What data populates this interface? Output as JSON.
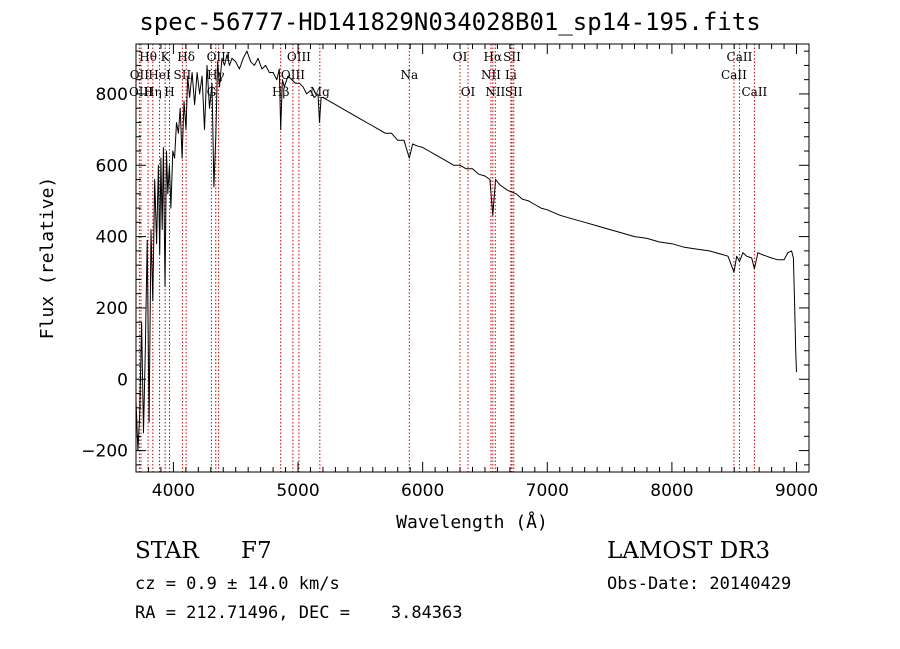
{
  "chart_data": {
    "type": "line",
    "title": "spec-56777-HD141829N034028B01_sp14-195.fits",
    "xlabel": "Wavelength (Å)",
    "ylabel": "Flux (relative)",
    "xlim": [
      3700,
      9100
    ],
    "ylim": [
      -260,
      940
    ],
    "xticks": [
      4000,
      5000,
      6000,
      7000,
      8000,
      9000
    ],
    "yticks": [
      -200,
      0,
      200,
      400,
      600,
      800
    ],
    "xtick_labels": [
      "4000",
      "5000",
      "6000",
      "7000",
      "8000",
      "9000"
    ],
    "ytick_labels": [
      "−200",
      "0",
      "200",
      "400",
      "600",
      "800"
    ],
    "series": [
      {
        "name": "spectrum",
        "x": [
          3700,
          3715,
          3730,
          3745,
          3760,
          3775,
          3790,
          3805,
          3820,
          3835,
          3850,
          3865,
          3880,
          3890,
          3900,
          3910,
          3920,
          3933,
          3945,
          3955,
          3968,
          3980,
          3995,
          4010,
          4025,
          4040,
          4055,
          4070,
          4085,
          4101,
          4115,
          4130,
          4150,
          4170,
          4190,
          4210,
          4230,
          4250,
          4270,
          4290,
          4310,
          4325,
          4340,
          4355,
          4370,
          4390,
          4410,
          4430,
          4450,
          4470,
          4500,
          4530,
          4560,
          4590,
          4620,
          4650,
          4680,
          4710,
          4740,
          4770,
          4800,
          4830,
          4850,
          4861,
          4875,
          4890,
          4920,
          4950,
          4980,
          5010,
          5040,
          5070,
          5100,
          5130,
          5160,
          5172,
          5185,
          5200,
          5250,
          5300,
          5350,
          5400,
          5450,
          5500,
          5550,
          5600,
          5650,
          5700,
          5750,
          5800,
          5850,
          5893,
          5920,
          5950,
          6000,
          6050,
          6100,
          6150,
          6200,
          6250,
          6300,
          6350,
          6400,
          6450,
          6500,
          6540,
          6563,
          6585,
          6620,
          6680,
          6750,
          6800,
          6850,
          6900,
          6950,
          7000,
          7100,
          7200,
          7300,
          7400,
          7500,
          7600,
          7700,
          7800,
          7900,
          8000,
          8100,
          8200,
          8300,
          8400,
          8450,
          8498,
          8520,
          8542,
          8570,
          8600,
          8640,
          8662,
          8690,
          8720,
          8760,
          8800,
          8850,
          8900,
          8930,
          8960,
          8975,
          8985,
          8993,
          9000
        ],
        "values": [
          -60,
          -200,
          -100,
          160,
          -150,
          80,
          390,
          -120,
          420,
          220,
          560,
          380,
          600,
          350,
          620,
          420,
          650,
          260,
          640,
          520,
          600,
          480,
          640,
          620,
          720,
          690,
          760,
          620,
          780,
          700,
          850,
          790,
          860,
          770,
          860,
          800,
          850,
          700,
          880,
          760,
          830,
          540,
          680,
          890,
          820,
          900,
          880,
          910,
          880,
          900,
          890,
          870,
          900,
          920,
          890,
          880,
          900,
          870,
          880,
          860,
          860,
          840,
          870,
          700,
          840,
          820,
          850,
          840,
          830,
          830,
          820,
          800,
          810,
          790,
          800,
          720,
          790,
          790,
          780,
          770,
          760,
          750,
          740,
          730,
          720,
          710,
          700,
          690,
          690,
          670,
          670,
          620,
          660,
          655,
          650,
          640,
          630,
          620,
          610,
          600,
          600,
          590,
          590,
          575,
          570,
          560,
          460,
          560,
          545,
          530,
          520,
          505,
          500,
          490,
          480,
          475,
          460,
          450,
          440,
          430,
          420,
          410,
          400,
          395,
          385,
          380,
          370,
          365,
          360,
          350,
          345,
          300,
          345,
          330,
          355,
          345,
          340,
          310,
          355,
          350,
          345,
          340,
          335,
          335,
          355,
          360,
          340,
          200,
          80,
          20
        ]
      }
    ],
    "lines": [
      {
        "name": "Hθ",
        "x": 3797,
        "row": 0
      },
      {
        "name": "OII",
        "x": 3727,
        "row": 1
      },
      {
        "name": "OIII",
        "x": 3740,
        "row": 2
      },
      {
        "name": "Hη",
        "x": 3835,
        "row": 2
      },
      {
        "name": "HeI",
        "x": 3889,
        "row": 1
      },
      {
        "name": "K",
        "x": 3934,
        "row": 0
      },
      {
        "name": "SII",
        "x": 4072,
        "row": 1
      },
      {
        "name": "H",
        "x": 3969,
        "row": 2
      },
      {
        "name": "Hδ",
        "x": 4102,
        "row": 0
      },
      {
        "name": "OIII",
        "x": 4363,
        "row": 0
      },
      {
        "name": "Hγ",
        "x": 4340,
        "row": 1
      },
      {
        "name": "G",
        "x": 4305,
        "row": 2
      },
      {
        "name": "OIII",
        "x": 5007,
        "row": 0
      },
      {
        "name": "OIII",
        "x": 4959,
        "row": 1
      },
      {
        "name": "Hβ",
        "x": 4861,
        "row": 2
      },
      {
        "name": "Mg",
        "x": 5175,
        "row": 2
      },
      {
        "name": "Na",
        "x": 5893,
        "row": 1
      },
      {
        "name": "OI",
        "x": 6300,
        "row": 0
      },
      {
        "name": "OI",
        "x": 6364,
        "row": 2
      },
      {
        "name": "Hα",
        "x": 6563,
        "row": 0
      },
      {
        "name": "NII",
        "x": 6548,
        "row": 1
      },
      {
        "name": "NII",
        "x": 6583,
        "row": 2
      },
      {
        "name": "SII",
        "x": 6717,
        "row": 0
      },
      {
        "name": "Li",
        "x": 6708,
        "row": 1
      },
      {
        "name": "SII",
        "x": 6731,
        "row": 2
      },
      {
        "name": "CaII",
        "x": 8542,
        "row": 0
      },
      {
        "name": "CaII",
        "x": 8498,
        "row": 1
      },
      {
        "name": "CaII",
        "x": 8662,
        "row": 2
      }
    ]
  },
  "info": {
    "object_class": "STAR",
    "subclass": "F7",
    "redshift": "cz = 0.9 ± 14.0 km/s",
    "coordinates": "RA = 212.71496, DEC =    3.84363",
    "survey": "LAMOST DR3",
    "obs_date": "Obs-Date: 20140429"
  },
  "colors": {
    "spectrum": "#000000",
    "line_markers": "#cc0000",
    "axes": "#000000",
    "background": "#ffffff"
  }
}
